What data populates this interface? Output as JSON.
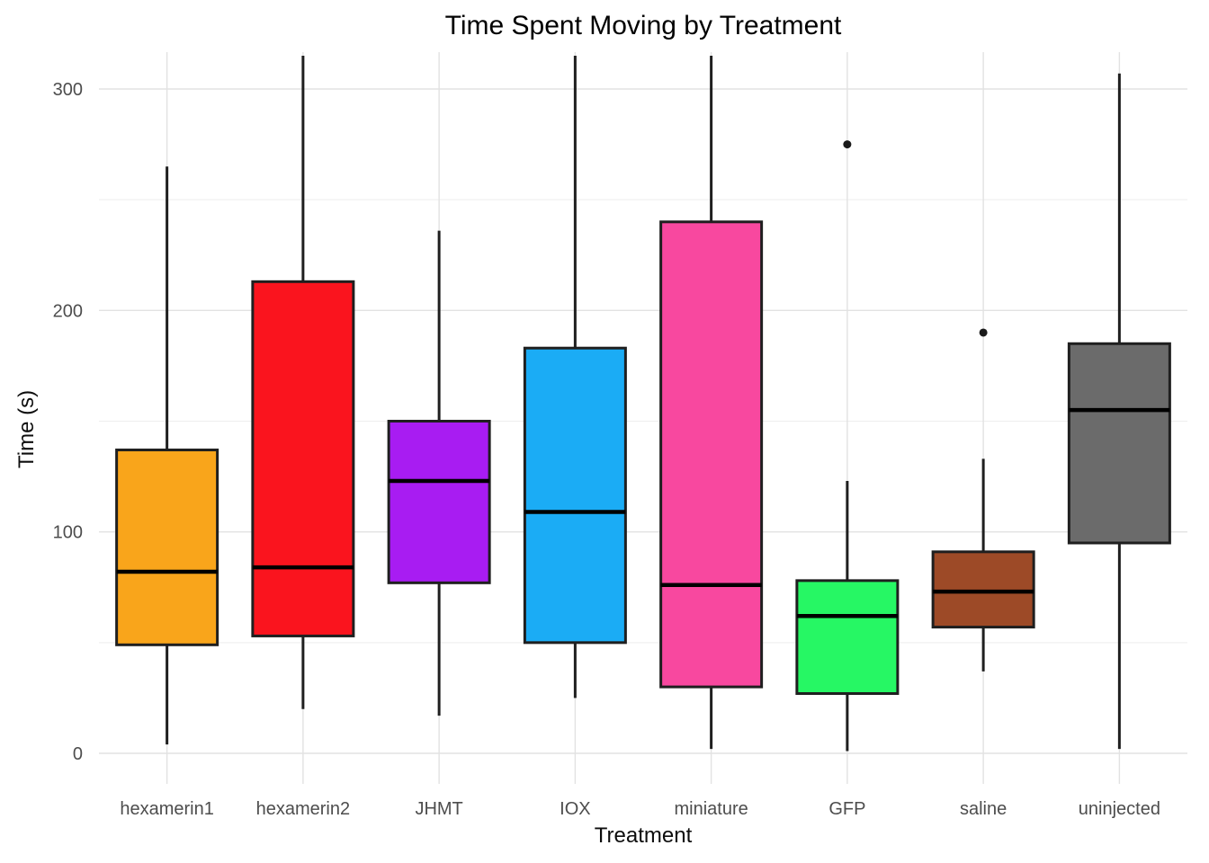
{
  "chart_data": {
    "type": "boxplot",
    "title": "Time Spent Moving by Treatment",
    "xlabel": "Treatment",
    "ylabel": "Time (s)",
    "ylim": [
      0,
      315
    ],
    "y_major_ticks": [
      0,
      100,
      200,
      300
    ],
    "y_minor_gridlines": [
      50,
      150,
      250
    ],
    "grid": "on",
    "legend": "none",
    "categories": [
      "hexamerin1",
      "hexamerin2",
      "JHMT",
      "IOX",
      "miniature",
      "GFP",
      "saline",
      "uninjected"
    ],
    "series": [
      {
        "name": "hexamerin1",
        "color": "#F9A51B",
        "whisker_low": 4,
        "q1": 49,
        "median": 82,
        "q3": 137,
        "whisker_high": 265,
        "outliers": []
      },
      {
        "name": "hexamerin2",
        "color": "#FA141E",
        "whisker_low": 20,
        "q1": 53,
        "median": 84,
        "q3": 213,
        "whisker_high": 315,
        "outliers": []
      },
      {
        "name": "JHMT",
        "color": "#A81CF2",
        "whisker_low": 17,
        "q1": 77,
        "median": 123,
        "q3": 150,
        "whisker_high": 236,
        "outliers": []
      },
      {
        "name": "IOX",
        "color": "#1BACF5",
        "whisker_low": 25,
        "q1": 50,
        "median": 109,
        "q3": 183,
        "whisker_high": 315,
        "outliers": []
      },
      {
        "name": "miniature",
        "color": "#F8489F",
        "whisker_low": 2,
        "q1": 30,
        "median": 76,
        "q3": 240,
        "whisker_high": 315,
        "outliers": []
      },
      {
        "name": "GFP",
        "color": "#26F764",
        "whisker_low": 1,
        "q1": 27,
        "median": 62,
        "q3": 78,
        "whisker_high": 123,
        "outliers": [
          275
        ]
      },
      {
        "name": "saline",
        "color": "#9D4A27",
        "whisker_low": 37,
        "q1": 57,
        "median": 73,
        "q3": 91,
        "whisker_high": 133,
        "outliers": [
          190
        ]
      },
      {
        "name": "uninjected",
        "color": "#6B6B6B",
        "whisker_low": 2,
        "q1": 95,
        "median": 155,
        "q3": 185,
        "whisker_high": 307,
        "outliers": []
      }
    ],
    "colors": {
      "box_border": "#1F1F1F",
      "median_line": "#000000",
      "whisker": "#1F1F1F",
      "outlier_dot": "#1A1A1A",
      "grid_major": "#E2E2E2",
      "grid_minor": "#EDEDED",
      "tick_label": "#4D4D4D",
      "background": "#FFFFFF"
    }
  }
}
